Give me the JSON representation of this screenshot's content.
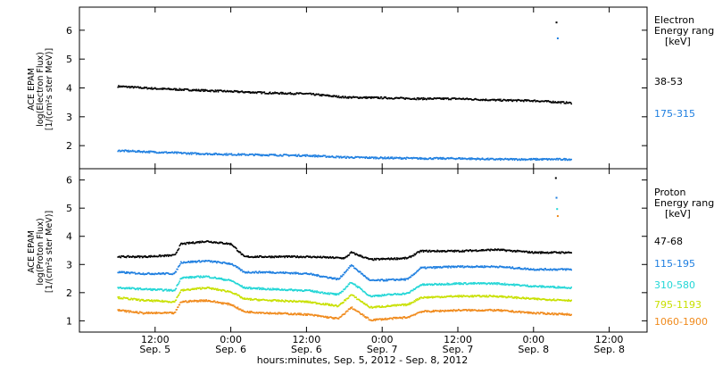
{
  "x_axis": {
    "caption": "hours:minutes, Sep. 5, 2012 - Sep. 8, 2012",
    "ticks": [
      {
        "time": "12:00",
        "date": "Sep. 5",
        "t": 12
      },
      {
        "time": "0:00",
        "date": "Sep. 6",
        "t": 24
      },
      {
        "time": "12:00",
        "date": "Sep. 6",
        "t": 36
      },
      {
        "time": "0:00",
        "date": "Sep. 7",
        "t": 48
      },
      {
        "time": "12:00",
        "date": "Sep. 7",
        "t": 60
      },
      {
        "time": "0:00",
        "date": "Sep. 8",
        "t": 72
      },
      {
        "time": "12:00",
        "date": "Sep. 8",
        "t": 84
      }
    ]
  },
  "chart_data": [
    {
      "type": "scatter",
      "panel": "electron",
      "ylabel": [
        "ACE EPAM",
        "log(Electron Flux)",
        "[1/(cm²s ster MeV)]"
      ],
      "legend_title": [
        "Electron",
        "Energy range",
        "[keV]"
      ],
      "ylim": [
        1.2,
        6.8
      ],
      "yticks": [
        2,
        3,
        4,
        5,
        6
      ],
      "series": [
        {
          "name": "38-53",
          "color": "#000000",
          "x": [
            6,
            12,
            18,
            24,
            30,
            36,
            42,
            48,
            54,
            60,
            66,
            72,
            78
          ],
          "y": [
            4.08,
            4.0,
            3.95,
            3.9,
            3.85,
            3.82,
            3.7,
            3.68,
            3.65,
            3.65,
            3.6,
            3.58,
            3.5
          ]
        },
        {
          "name": "175-315",
          "color": "#1f7fe0",
          "x": [
            6,
            12,
            18,
            24,
            30,
            36,
            42,
            48,
            54,
            60,
            66,
            72,
            78
          ],
          "y": [
            1.85,
            1.8,
            1.75,
            1.72,
            1.7,
            1.68,
            1.62,
            1.6,
            1.58,
            1.58,
            1.55,
            1.55,
            1.55
          ]
        }
      ],
      "outliers": [
        {
          "x": 75.5,
          "y": 6.3,
          "color": "#000000"
        },
        {
          "x": 75.7,
          "y": 5.75,
          "color": "#1f7fe0"
        }
      ]
    },
    {
      "type": "scatter",
      "panel": "proton",
      "ylabel": [
        "ACE EPAM",
        "log(Proton Flux)",
        "[1/(cm²s ster MeV)]"
      ],
      "legend_title": [
        "Proton",
        "Energy range",
        "[keV]"
      ],
      "ylim": [
        0.6,
        6.4
      ],
      "yticks": [
        1,
        2,
        3,
        4,
        5,
        6
      ],
      "series": [
        {
          "name": "47-68",
          "color": "#000000",
          "x": [
            6,
            10,
            15,
            16,
            20,
            24,
            26,
            30,
            36,
            42,
            43,
            46,
            52,
            54,
            60,
            66,
            72,
            78
          ],
          "y": [
            3.3,
            3.3,
            3.35,
            3.75,
            3.85,
            3.75,
            3.3,
            3.3,
            3.3,
            3.25,
            3.45,
            3.2,
            3.25,
            3.5,
            3.5,
            3.55,
            3.45,
            3.45
          ]
        },
        {
          "name": "115-195",
          "color": "#1f7fe0",
          "x": [
            6,
            10,
            15,
            16,
            20,
            24,
            26,
            30,
            36,
            41,
            43,
            46,
            52,
            54,
            60,
            66,
            72,
            78
          ],
          "y": [
            2.75,
            2.7,
            2.7,
            3.1,
            3.15,
            3.05,
            2.75,
            2.75,
            2.7,
            2.5,
            3.0,
            2.45,
            2.5,
            2.9,
            2.95,
            2.95,
            2.85,
            2.85
          ]
        },
        {
          "name": "310-580",
          "color": "#22d6d6",
          "x": [
            6,
            10,
            15,
            16,
            20,
            24,
            26,
            30,
            36,
            41,
            43,
            46,
            52,
            54,
            60,
            66,
            72,
            78
          ],
          "y": [
            2.2,
            2.15,
            2.1,
            2.55,
            2.6,
            2.45,
            2.2,
            2.15,
            2.1,
            1.95,
            2.4,
            1.9,
            2.0,
            2.3,
            2.35,
            2.35,
            2.25,
            2.2
          ]
        },
        {
          "name": "795-1193",
          "color": "#c8e000",
          "x": [
            6,
            10,
            15,
            16,
            20,
            24,
            26,
            30,
            36,
            41,
            43,
            46,
            52,
            54,
            60,
            66,
            72,
            78
          ],
          "y": [
            1.85,
            1.75,
            1.7,
            2.1,
            2.2,
            2.05,
            1.8,
            1.75,
            1.7,
            1.55,
            1.95,
            1.5,
            1.6,
            1.85,
            1.9,
            1.9,
            1.8,
            1.75
          ]
        },
        {
          "name": "1060-1900",
          "color": "#f08a1c",
          "x": [
            6,
            10,
            15,
            16,
            20,
            24,
            26,
            30,
            36,
            41,
            43,
            46,
            52,
            54,
            60,
            66,
            72,
            78
          ],
          "y": [
            1.4,
            1.3,
            1.3,
            1.7,
            1.75,
            1.6,
            1.35,
            1.3,
            1.25,
            1.1,
            1.5,
            1.05,
            1.15,
            1.35,
            1.4,
            1.4,
            1.3,
            1.25
          ]
        }
      ],
      "outliers": [
        {
          "x": 75.4,
          "y": 6.1,
          "color": "#000000"
        },
        {
          "x": 75.5,
          "y": 5.4,
          "color": "#1f7fe0"
        },
        {
          "x": 75.6,
          "y": 5.0,
          "color": "#22d6d6"
        },
        {
          "x": 75.7,
          "y": 4.75,
          "color": "#f08a1c"
        }
      ]
    }
  ]
}
